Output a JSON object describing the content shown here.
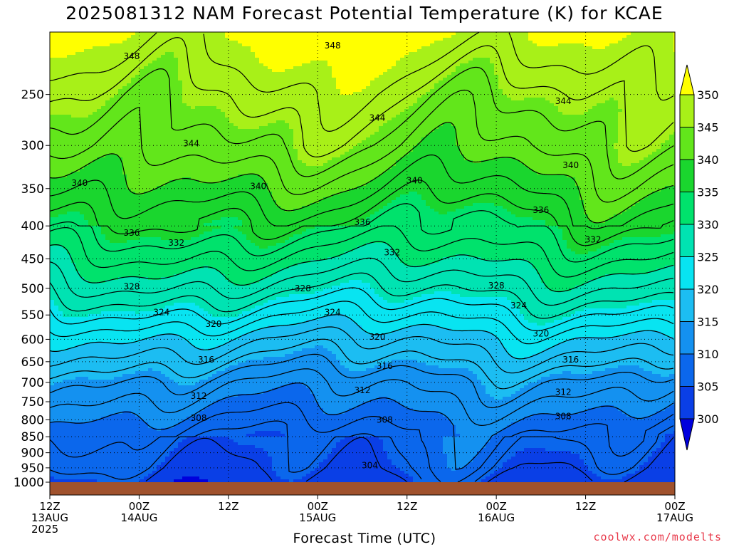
{
  "chart_data": {
    "type": "heatmap",
    "title": "2025081312 NAM Forecast Potential Temperature (K) for KCAE",
    "xlabel": "Forecast Time (UTC)",
    "ylabel": "",
    "y_scale": "log",
    "y_axis": "pressure",
    "y_inverted": true,
    "y_range": [
      1000,
      200
    ],
    "y_ticks": [
      250,
      300,
      350,
      400,
      450,
      500,
      550,
      600,
      650,
      700,
      750,
      800,
      850,
      900,
      950,
      1000
    ],
    "x_range_hours": [
      0,
      84
    ],
    "x_ticks": [
      {
        "hour": 0,
        "lines": [
          "12Z",
          "13AUG",
          "2025"
        ]
      },
      {
        "hour": 12,
        "lines": [
          "00Z",
          "14AUG"
        ]
      },
      {
        "hour": 24,
        "lines": [
          "12Z"
        ]
      },
      {
        "hour": 36,
        "lines": [
          "00Z",
          "15AUG"
        ]
      },
      {
        "hour": 48,
        "lines": [
          "12Z"
        ]
      },
      {
        "hour": 60,
        "lines": [
          "00Z",
          "16AUG"
        ]
      },
      {
        "hour": 72,
        "lines": [
          "12Z"
        ]
      },
      {
        "hour": 84,
        "lines": [
          "00Z",
          "17AUG"
        ]
      }
    ],
    "grid": true,
    "grid_style": "dotted",
    "colorbar": {
      "placement": "right",
      "levels": [
        300,
        305,
        310,
        315,
        320,
        325,
        330,
        335,
        340,
        345,
        350
      ],
      "colors": [
        "#0000dd",
        "#0a3fe6",
        "#0b67ec",
        "#1491f0",
        "#1cbdf2",
        "#08e4f1",
        "#00e3b2",
        "#00e26c",
        "#1ad62e",
        "#62e61b",
        "#a8f018",
        "#ffff00"
      ],
      "extend": "both"
    },
    "isentropes_K": [
      304,
      306,
      308,
      310,
      312,
      314,
      316,
      318,
      320,
      322,
      324,
      326,
      328,
      330,
      332,
      334,
      336,
      338,
      340,
      342,
      344,
      346,
      348
    ],
    "contour_labels": [
      {
        "value": 348,
        "hour": 11,
        "p": 218
      },
      {
        "value": 348,
        "hour": 38,
        "p": 210
      },
      {
        "value": 344,
        "hour": 19,
        "p": 298
      },
      {
        "value": 344,
        "hour": 44,
        "p": 272
      },
      {
        "value": 344,
        "hour": 69,
        "p": 256
      },
      {
        "value": 340,
        "hour": 4,
        "p": 343
      },
      {
        "value": 340,
        "hour": 28,
        "p": 347
      },
      {
        "value": 340,
        "hour": 49,
        "p": 340
      },
      {
        "value": 340,
        "hour": 70,
        "p": 322
      },
      {
        "value": 336,
        "hour": 11,
        "p": 410
      },
      {
        "value": 336,
        "hour": 42,
        "p": 395
      },
      {
        "value": 336,
        "hour": 66,
        "p": 378
      },
      {
        "value": 332,
        "hour": 17,
        "p": 425
      },
      {
        "value": 332,
        "hour": 46,
        "p": 440
      },
      {
        "value": 332,
        "hour": 73,
        "p": 420
      },
      {
        "value": 328,
        "hour": 11,
        "p": 497
      },
      {
        "value": 328,
        "hour": 34,
        "p": 500
      },
      {
        "value": 328,
        "hour": 60,
        "p": 495
      },
      {
        "value": 324,
        "hour": 15,
        "p": 545
      },
      {
        "value": 324,
        "hour": 38,
        "p": 545
      },
      {
        "value": 324,
        "hour": 63,
        "p": 532
      },
      {
        "value": 320,
        "hour": 22,
        "p": 568
      },
      {
        "value": 320,
        "hour": 44,
        "p": 595
      },
      {
        "value": 320,
        "hour": 66,
        "p": 588
      },
      {
        "value": 316,
        "hour": 21,
        "p": 645
      },
      {
        "value": 316,
        "hour": 45,
        "p": 660
      },
      {
        "value": 316,
        "hour": 70,
        "p": 645
      },
      {
        "value": 312,
        "hour": 20,
        "p": 735
      },
      {
        "value": 312,
        "hour": 42,
        "p": 720
      },
      {
        "value": 312,
        "hour": 69,
        "p": 725
      },
      {
        "value": 308,
        "hour": 20,
        "p": 795
      },
      {
        "value": 308,
        "hour": 45,
        "p": 800
      },
      {
        "value": 308,
        "hour": 69,
        "p": 790
      },
      {
        "value": 304,
        "hour": 43,
        "p": 942
      }
    ],
    "surface_color": "#a0522d",
    "approx_profile": [
      {
        "p": 1000,
        "theta": 303
      },
      {
        "p": 950,
        "theta": 305
      },
      {
        "p": 900,
        "theta": 306
      },
      {
        "p": 850,
        "theta": 307
      },
      {
        "p": 800,
        "theta": 309
      },
      {
        "p": 750,
        "theta": 311
      },
      {
        "p": 700,
        "theta": 313
      },
      {
        "p": 650,
        "theta": 316
      },
      {
        "p": 600,
        "theta": 319
      },
      {
        "p": 550,
        "theta": 323
      },
      {
        "p": 500,
        "theta": 327
      },
      {
        "p": 450,
        "theta": 331
      },
      {
        "p": 400,
        "theta": 335
      },
      {
        "p": 350,
        "theta": 339
      },
      {
        "p": 300,
        "theta": 343
      },
      {
        "p": 250,
        "theta": 346
      },
      {
        "p": 200,
        "theta": 351
      }
    ]
  },
  "credit": "coolwx.com/modelts"
}
